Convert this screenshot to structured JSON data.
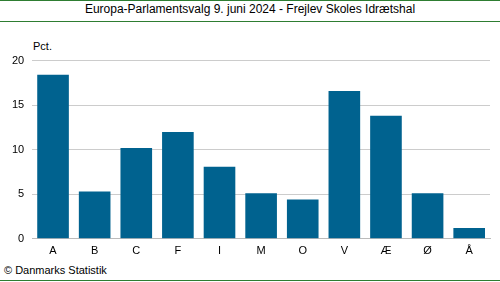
{
  "chart_data": {
    "type": "bar",
    "title": "Europa-Parlamentsvalg 9. juni 2024 - Frejlev Skoles Idrætshal",
    "ylabel": "Pct.",
    "source": "© Danmarks Statistik",
    "categories": [
      "A",
      "B",
      "C",
      "F",
      "I",
      "M",
      "O",
      "V",
      "Æ",
      "Ø",
      "Å"
    ],
    "values": [
      18.4,
      5.3,
      10.2,
      12.0,
      8.1,
      5.1,
      4.4,
      16.6,
      13.8,
      5.1,
      1.2
    ],
    "color": "#00628f",
    "ylim": [
      0,
      20
    ],
    "yticks": [
      0,
      5,
      10,
      15,
      20
    ],
    "grid": true
  }
}
